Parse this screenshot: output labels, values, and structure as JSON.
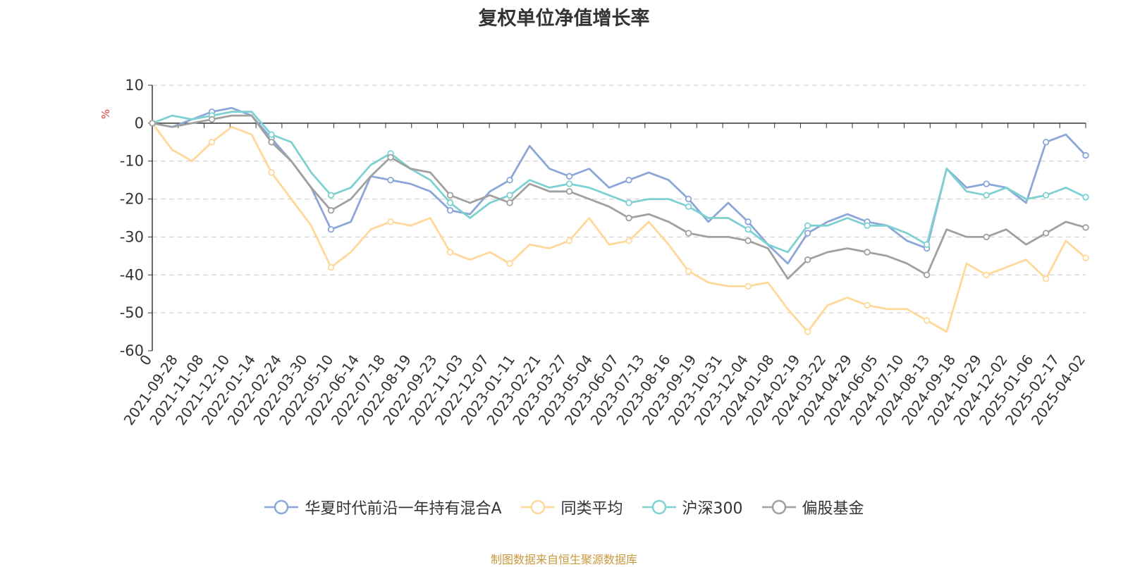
{
  "chart_data": {
    "type": "line",
    "title": "复权单位净值增长率",
    "ylabel": "%",
    "ylim": [
      -60,
      10
    ],
    "yticks": [
      10,
      0,
      -10,
      -20,
      -30,
      -40,
      -50,
      -60
    ],
    "x_tick_labels": [
      "0",
      "2021-09-28",
      "2021-11-08",
      "2021-12-10",
      "2022-01-14",
      "2022-02-24",
      "2022-03-30",
      "2022-05-10",
      "2022-06-14",
      "2022-07-18",
      "2022-08-19",
      "2022-09-23",
      "2022-11-03",
      "2022-12-07",
      "2023-01-11",
      "2023-02-21",
      "2023-03-27",
      "2023-05-04",
      "2023-06-07",
      "2023-07-13",
      "2023-08-16",
      "2023-09-19",
      "2023-10-31",
      "2023-12-04",
      "2024-01-08",
      "2024-02-19",
      "2024-03-22",
      "2024-04-29",
      "2024-06-05",
      "2024-07-10",
      "2024-08-13",
      "2024-09-18",
      "2024-10-29",
      "2024-12-02",
      "2025-01-06",
      "2025-02-17",
      "2025-04-02"
    ],
    "grid": "horizontal-dashed",
    "legend_position": "bottom-center",
    "series": [
      {
        "name": "华夏时代前沿一年持有混合A",
        "color": "#8ba7d7",
        "values": [
          0,
          -1,
          1,
          3,
          4,
          2,
          -4,
          -10,
          -17,
          -28,
          -26,
          -14,
          -15,
          -16,
          -18,
          -23,
          -24,
          -18,
          -15,
          -6,
          -12,
          -14,
          -12,
          -17,
          -15,
          -13,
          -15,
          -20,
          -26,
          -21,
          -26,
          -32,
          -37,
          -29,
          -26,
          -24,
          -26,
          -27,
          -31,
          -33,
          -12,
          -17,
          -16,
          -17,
          -21,
          -5,
          -3,
          -8.5
        ]
      },
      {
        "name": "同类平均",
        "color": "#ffd89a",
        "values": [
          0,
          -7,
          -10,
          -5,
          -1,
          -3,
          -13,
          -20,
          -27,
          -38,
          -34,
          -28,
          -26,
          -27,
          -25,
          -34,
          -36,
          -34,
          -37,
          -32,
          -33,
          -31,
          -25,
          -32,
          -31,
          -26,
          -32,
          -39,
          -42,
          -43,
          -43,
          -42,
          -49,
          -55,
          -48,
          -46,
          -48,
          -49,
          -49,
          -52,
          -55,
          -37,
          -40,
          -38,
          -36,
          -41,
          -31,
          -35.5
        ]
      },
      {
        "name": "沪深300",
        "color": "#7fd1d1",
        "values": [
          0,
          2,
          1,
          2,
          3,
          3,
          -3,
          -5,
          -13,
          -19,
          -17,
          -11,
          -8,
          -12,
          -15,
          -21,
          -25,
          -21,
          -19,
          -15,
          -17,
          -16,
          -17,
          -19,
          -21,
          -20,
          -20,
          -22,
          -25,
          -25,
          -28,
          -32,
          -34,
          -27,
          -27,
          -25,
          -27,
          -27,
          -29,
          -32,
          -12,
          -18,
          -19,
          -17,
          -20,
          -19,
          -17,
          -19.5
        ]
      },
      {
        "name": "偏股基金",
        "color": "#a0a0a0",
        "values": [
          0,
          -1,
          0,
          1,
          2,
          2,
          -5,
          -10,
          -17,
          -23,
          -20,
          -14,
          -9,
          -12,
          -13,
          -19,
          -21,
          -19,
          -21,
          -16,
          -18,
          -18,
          -20,
          -22,
          -25,
          -24,
          -26,
          -29,
          -30,
          -30,
          -31,
          -33,
          -41,
          -36,
          -34,
          -33,
          -34,
          -35,
          -37,
          -40,
          -28,
          -30,
          -30,
          -28,
          -32,
          -29,
          -26,
          -27.5
        ]
      }
    ]
  },
  "source_note": "制图数据来自恒生聚源数据库"
}
